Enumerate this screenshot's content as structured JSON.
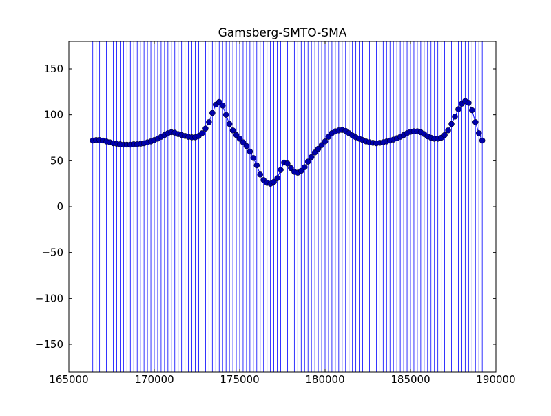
{
  "chart_data": {
    "type": "scatter-vlines",
    "title": "Gamsberg-SMTO-SMA",
    "color": "#0000ff",
    "marker_color": "#0000aa",
    "xlim": [
      165000,
      190000
    ],
    "ylim": [
      -180,
      180
    ],
    "xticks": [
      165000,
      170000,
      175000,
      180000,
      185000,
      190000
    ],
    "yticks": [
      {
        "value": -150,
        "label": "−150"
      },
      {
        "value": -100,
        "label": "−100"
      },
      {
        "value": -50,
        "label": "−50"
      },
      0,
      50,
      100,
      150
    ],
    "x": [
      166400,
      166600,
      166800,
      167000,
      167200,
      167400,
      167600,
      167800,
      168000,
      168200,
      168400,
      168600,
      168800,
      169000,
      169200,
      169400,
      169600,
      169800,
      170000,
      170200,
      170400,
      170600,
      170800,
      171000,
      171200,
      171400,
      171600,
      171800,
      172000,
      172200,
      172400,
      172600,
      172800,
      173000,
      173200,
      173400,
      173600,
      173800,
      174000,
      174200,
      174400,
      174600,
      174800,
      175000,
      175200,
      175400,
      175600,
      175800,
      176000,
      176200,
      176400,
      176600,
      176800,
      177000,
      177200,
      177400,
      177600,
      177800,
      178000,
      178200,
      178400,
      178600,
      178800,
      179000,
      179200,
      179400,
      179600,
      179800,
      180000,
      180200,
      180400,
      180600,
      180800,
      181000,
      181200,
      181400,
      181600,
      181800,
      182000,
      182200,
      182400,
      182600,
      182800,
      183000,
      183200,
      183400,
      183600,
      183800,
      184000,
      184200,
      184400,
      184600,
      184800,
      185000,
      185200,
      185400,
      185600,
      185800,
      186000,
      186200,
      186400,
      186600,
      186800,
      187000,
      187200,
      187400,
      187600,
      187800,
      188000,
      188200,
      188400,
      188600,
      188800,
      189000,
      189200
    ],
    "values": [
      72,
      72.5,
      72.5,
      72,
      71,
      70,
      69,
      68.5,
      68,
      67.5,
      67.5,
      67.5,
      68,
      68,
      68.5,
      69,
      70,
      71,
      72.5,
      74,
      76,
      78,
      80,
      81,
      80.5,
      79,
      78,
      77,
      76,
      75.5,
      75.5,
      77,
      80,
      85,
      92,
      102,
      111,
      114,
      110,
      100,
      90,
      83,
      78,
      74,
      70,
      66,
      60,
      53,
      45,
      35,
      29,
      26,
      25,
      27,
      31,
      40,
      48,
      47,
      42,
      38,
      37,
      39,
      43,
      49,
      54,
      59,
      63,
      67,
      71,
      76,
      80,
      82,
      83,
      83.5,
      82.5,
      80,
      77.5,
      75.5,
      74,
      72.5,
      71,
      70,
      69.5,
      69,
      69.5,
      70,
      71,
      72,
      73,
      74.5,
      76,
      78,
      80,
      81.5,
      82,
      82,
      81,
      79,
      76.5,
      75,
      74,
      74,
      75,
      78,
      83,
      90,
      98,
      106,
      112,
      115,
      113,
      105,
      92,
      80,
      72
    ]
  }
}
